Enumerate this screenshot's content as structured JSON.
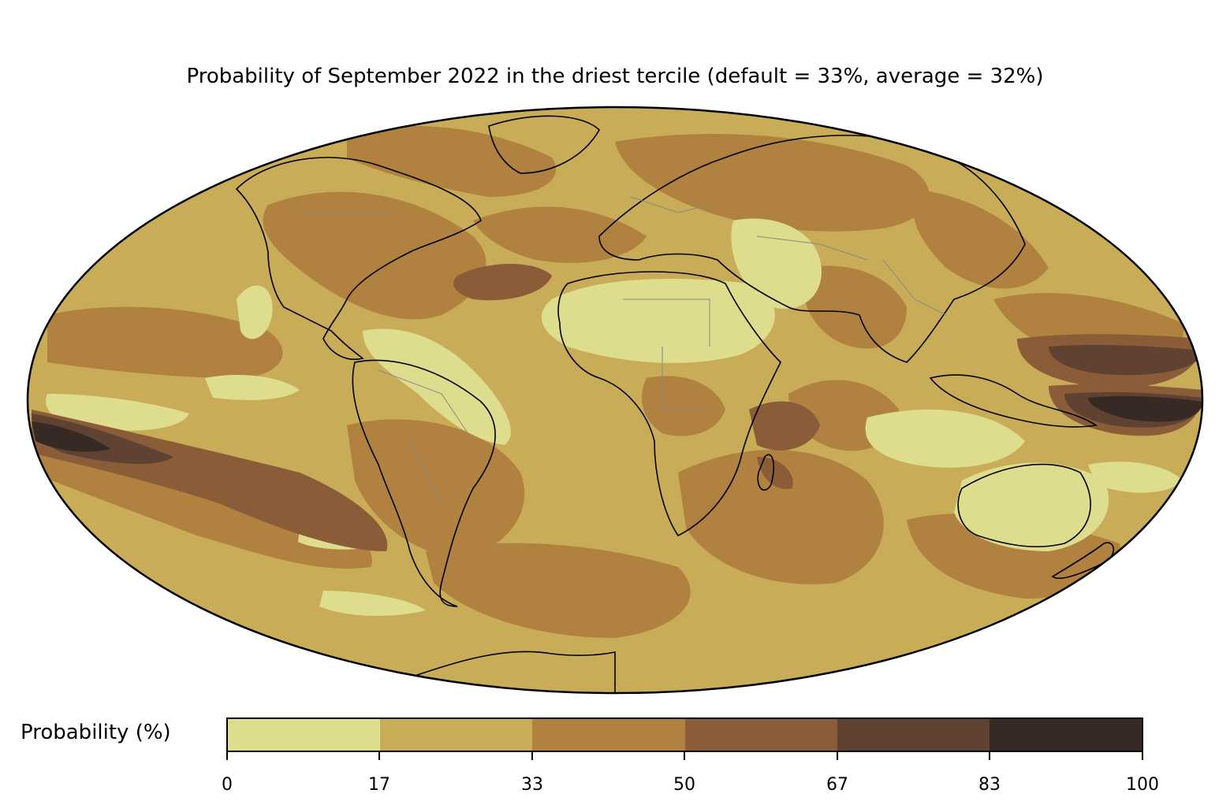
{
  "title": "Probability of September 2022 in the driest tercile (default = 33%, average = 32%)",
  "colorbar": {
    "label": "Probability (%)",
    "ticks": [
      "0",
      "17",
      "33",
      "50",
      "67",
      "83",
      "100"
    ],
    "colors": [
      "#dedd8d",
      "#c9ac58",
      "#b0813f",
      "#8a5c38",
      "#5f4231",
      "#372a25"
    ]
  },
  "map": {
    "projection": "Mollweide",
    "ocean_base_color": "#c9ac58",
    "coastline_color": "#000000",
    "border_color": "#888888"
  }
}
